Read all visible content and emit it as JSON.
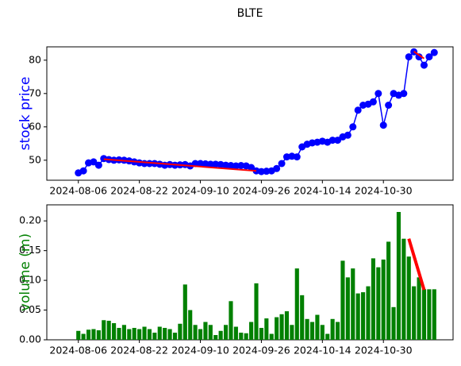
{
  "chart_data": [
    {
      "type": "line",
      "title": "BLTE",
      "y_label": "stock price",
      "y_label_color": "#0000ff",
      "categories": [
        "2024-08-06",
        null,
        null,
        null,
        null,
        null,
        null,
        null,
        null,
        null,
        null,
        null,
        "2024-08-22",
        null,
        null,
        null,
        null,
        null,
        null,
        null,
        null,
        null,
        null,
        null,
        "2024-09-10",
        null,
        null,
        null,
        null,
        null,
        null,
        null,
        null,
        null,
        null,
        null,
        "2024-09-26",
        null,
        null,
        null,
        null,
        null,
        null,
        null,
        null,
        null,
        null,
        null,
        "2024-10-14",
        null,
        null,
        null,
        null,
        null,
        null,
        null,
        null,
        null,
        null,
        null,
        "2024-10-30",
        null,
        null,
        null,
        null,
        null,
        null,
        null,
        null,
        null,
        null
      ],
      "series": [
        {
          "name": null,
          "color": "#0000ff",
          "marker": true,
          "values": [
            46.2,
            46.8,
            49.2,
            49.5,
            48.5,
            50.5,
            50.2,
            50,
            50.1,
            50,
            49.8,
            49.5,
            49.2,
            49,
            49,
            49,
            48.8,
            48.5,
            48.7,
            48.5,
            48.6,
            48.7,
            48.3,
            49,
            49,
            48.9,
            48.8,
            48.8,
            48.7,
            48.5,
            48.4,
            48.3,
            48.4,
            48.3,
            47.8,
            46.8,
            46.6,
            46.7,
            46.8,
            47.5,
            49,
            51,
            51.2,
            51,
            54,
            54.8,
            55.2,
            55.4,
            55.7,
            55.4,
            56,
            56,
            57,
            57.5,
            60,
            65,
            66.5,
            66.8,
            67.5,
            70,
            60.5,
            66.5,
            70,
            69.5,
            70,
            81,
            82.5,
            81,
            78.5,
            81,
            82.3
          ]
        }
      ],
      "trend_lines": [
        {
          "color": "#ff0000",
          "x": [
            5,
            35
          ],
          "y": [
            50.3,
            46.8
          ]
        },
        {
          "color": "#ff0000",
          "x": [
            66,
            68
          ],
          "y": [
            82.6,
            80.5
          ]
        }
      ],
      "xlim": [
        -6.2,
        73.7
      ],
      "ylim": [
        44,
        84
      ],
      "yticks": [
        50,
        60,
        70,
        80
      ]
    },
    {
      "type": "bar",
      "y_label": "volume (m)",
      "y_label_color": "#008000",
      "color": "#008000",
      "categories": [
        "2024-08-06",
        null,
        null,
        null,
        null,
        null,
        null,
        null,
        null,
        null,
        null,
        null,
        "2024-08-22",
        null,
        null,
        null,
        null,
        null,
        null,
        null,
        null,
        null,
        null,
        null,
        "2024-09-10",
        null,
        null,
        null,
        null,
        null,
        null,
        null,
        null,
        null,
        null,
        null,
        "2024-09-26",
        null,
        null,
        null,
        null,
        null,
        null,
        null,
        null,
        null,
        null,
        null,
        "2024-10-14",
        null,
        null,
        null,
        null,
        null,
        null,
        null,
        null,
        null,
        null,
        null,
        "2024-10-30",
        null,
        null,
        null,
        null,
        null,
        null,
        null,
        null,
        null,
        null
      ],
      "values": [
        0.015,
        0.01,
        0.017,
        0.018,
        0.016,
        0.033,
        0.032,
        0.028,
        0.02,
        0.025,
        0.018,
        0.02,
        0.018,
        0.022,
        0.018,
        0.012,
        0.022,
        0.02,
        0.018,
        0.012,
        0.027,
        0.093,
        0.05,
        0.025,
        0.018,
        0.03,
        0.025,
        0.008,
        0.015,
        0.025,
        0.065,
        0.022,
        0.012,
        0.011,
        0.03,
        0.095,
        0.02,
        0.036,
        0.01,
        0.038,
        0.043,
        0.048,
        0.025,
        0.12,
        0.075,
        0.035,
        0.03,
        0.042,
        0.025,
        0.01,
        0.035,
        0.03,
        0.133,
        0.105,
        0.12,
        0.078,
        0.08,
        0.09,
        0.137,
        0.122,
        0.135,
        0.165,
        0.055,
        0.215,
        0.17,
        0.14,
        0.09,
        0.105,
        0.085,
        0.085,
        0.085
      ],
      "trend_lines": [
        {
          "color": "#ff0000",
          "x": [
            65,
            68
          ],
          "y": [
            0.17,
            0.084
          ]
        }
      ],
      "xlim": [
        -6.2,
        73.7
      ],
      "ylim": [
        0,
        0.227
      ],
      "yticks": [
        {
          "value": 0,
          "label": "0.00"
        },
        {
          "value": 0.05,
          "label": "0.05"
        },
        {
          "value": 0.1,
          "label": "0.10"
        },
        {
          "value": 0.15,
          "label": "0.15"
        },
        {
          "value": 0.2,
          "label": "0.20"
        }
      ]
    }
  ]
}
